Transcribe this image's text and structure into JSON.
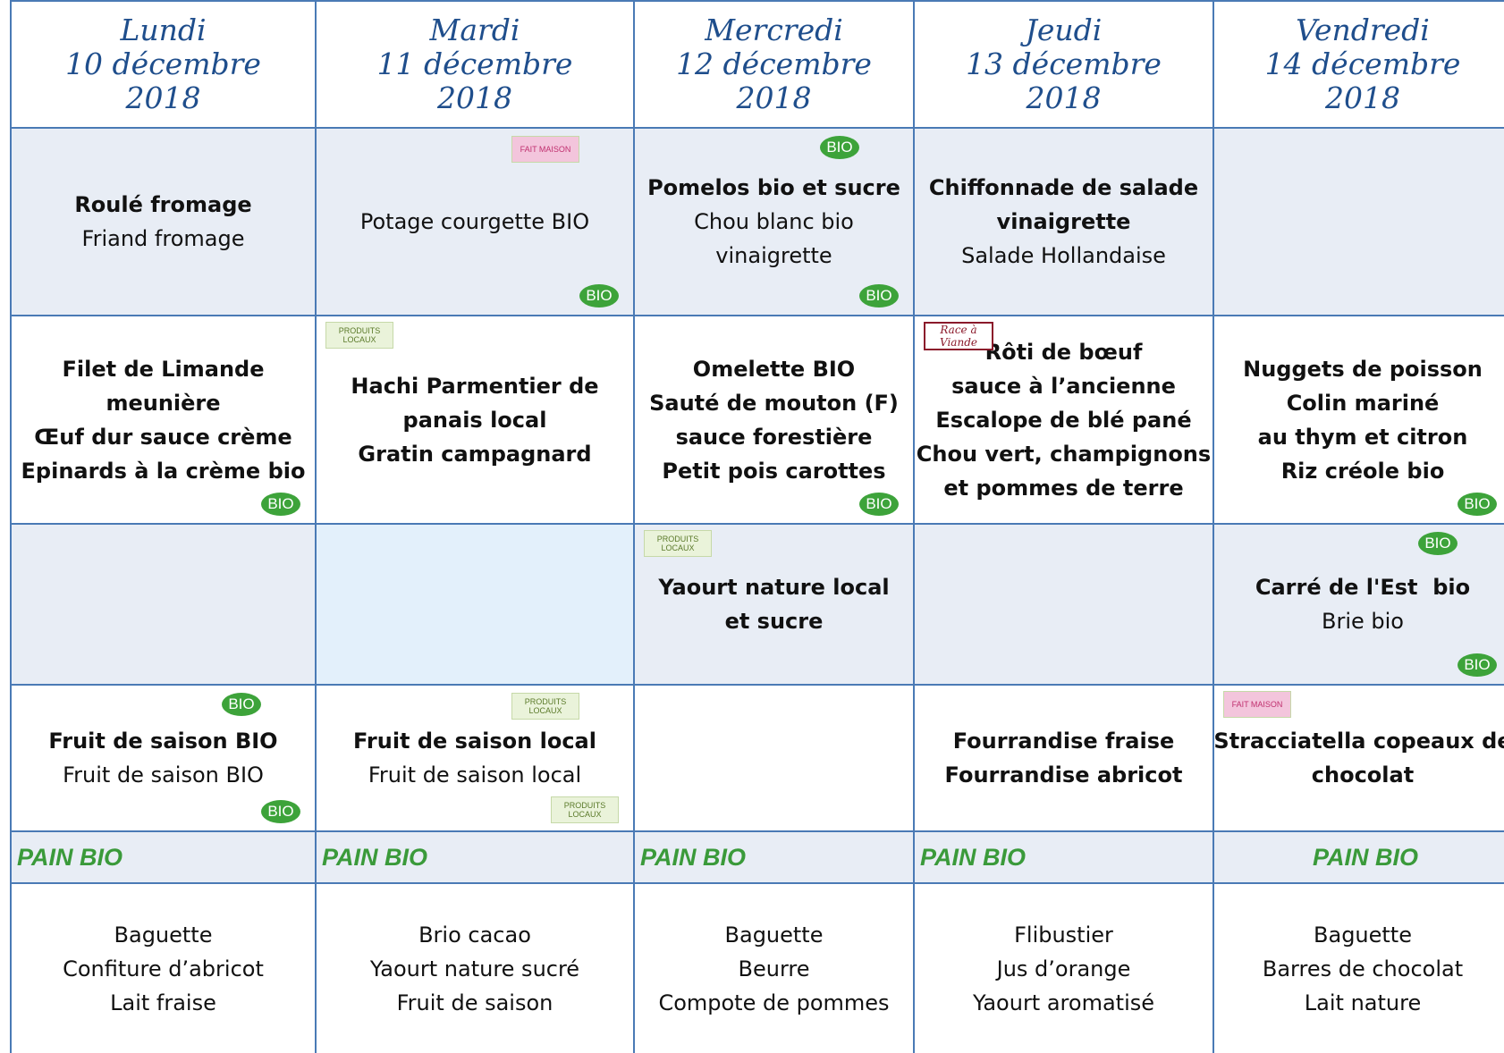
{
  "days": [
    {
      "name": "Lundi",
      "date": "10 décembre",
      "year": "2018",
      "rows": [
        {
          "bold": [
            "Roulé fromage"
          ],
          "regular": [
            "Friand fromage"
          ],
          "badges": []
        },
        {
          "bold": [
            "Filet de Limande",
            "meunière",
            "Œuf dur sauce crème",
            "Epinards à la crème bio"
          ],
          "regular": [],
          "badges": [
            "BIO"
          ]
        },
        {
          "bold": [],
          "regular": [],
          "badges": []
        },
        {
          "bold": [
            "Fruit de saison BIO"
          ],
          "regular": [
            "Fruit de saison BIO"
          ],
          "badges": [
            "BIO",
            "BIO"
          ]
        }
      ],
      "bread": "PAIN BIO",
      "snack": [
        "Baguette",
        "Confiture d’abricot",
        "Lait fraise"
      ]
    },
    {
      "name": "Mardi",
      "date": "11 décembre",
      "year": "2018",
      "rows": [
        {
          "bold": [],
          "regular": [
            "Potage courgette BIO"
          ],
          "badges": [
            "FAIT MAISON",
            "BIO"
          ]
        },
        {
          "bold": [
            "Hachi Parmentier de",
            "panais local",
            "Gratin campagnard"
          ],
          "regular": [],
          "badges": [
            "PRODUITS LOCAUX"
          ]
        },
        {
          "bold": [],
          "regular": [],
          "badges": []
        },
        {
          "bold": [
            "Fruit de saison local"
          ],
          "regular": [
            "Fruit de saison local"
          ],
          "badges": [
            "PRODUITS LOCAUX",
            "PRODUITS LOCAUX"
          ]
        }
      ],
      "bread": "PAIN BIO",
      "snack": [
        "Brio cacao",
        "Yaourt nature sucré",
        "Fruit de saison"
      ]
    },
    {
      "name": "Mercredi",
      "date": "12 décembre",
      "year": "2018",
      "rows": [
        {
          "bold": [
            "Pomelos bio et sucre"
          ],
          "regular": [
            "Chou blanc bio",
            "vinaigrette"
          ],
          "badges": [
            "BIO",
            "BIO"
          ]
        },
        {
          "bold": [
            "Omelette BIO",
            "Sauté de mouton (F)",
            "sauce forestière",
            "Petit pois carottes"
          ],
          "regular": [],
          "badges": [
            "BIO"
          ]
        },
        {
          "bold": [
            "Yaourt nature local",
            "et sucre"
          ],
          "regular": [],
          "badges": [
            "PRODUITS LOCAUX"
          ]
        },
        {
          "bold": [],
          "regular": [],
          "badges": []
        }
      ],
      "bread": "PAIN BIO",
      "snack": [
        "Baguette",
        "Beurre",
        "Compote de pommes"
      ]
    },
    {
      "name": "Jeudi",
      "date": "13 décembre",
      "year": "2018",
      "rows": [
        {
          "bold": [
            "Chiffonnade de salade",
            "vinaigrette"
          ],
          "regular": [
            "Salade Hollandaise"
          ],
          "badges": []
        },
        {
          "bold": [
            "Rôti de bœuf",
            "sauce à l’ancienne",
            "Escalope de blé pané",
            "Chou vert, champignons",
            "et pommes de terre"
          ],
          "regular": [],
          "badges": [
            "Race à Viande"
          ]
        },
        {
          "bold": [],
          "regular": [],
          "badges": []
        },
        {
          "bold": [
            "Fourrandise fraise",
            "Fourrandise abricot"
          ],
          "regular": [],
          "badges": []
        }
      ],
      "bread": "PAIN BIO",
      "snack": [
        "Flibustier",
        "Jus d’orange",
        "Yaourt aromatisé"
      ]
    },
    {
      "name": "Vendredi",
      "date": "14 décembre",
      "year": "2018",
      "rows": [
        {
          "bold": [],
          "regular": [],
          "badges": []
        },
        {
          "bold": [
            "Nuggets de poisson",
            "Colin mariné",
            "au thym et citron",
            "Riz créole bio"
          ],
          "regular": [],
          "badges": [
            "BIO"
          ]
        },
        {
          "bold": [
            "Carré de l'Est  bio"
          ],
          "regular": [
            "Brie bio"
          ],
          "badges": [
            "BIO",
            "BIO"
          ]
        },
        {
          "bold": [
            "Stracciatella copeaux de",
            "chocolat"
          ],
          "regular": [],
          "badges": [
            "FAIT MAISON"
          ]
        }
      ],
      "bread": "PAIN BIO",
      "snack": [
        "Baguette",
        "Barres de chocolat",
        "Lait nature"
      ]
    }
  ]
}
